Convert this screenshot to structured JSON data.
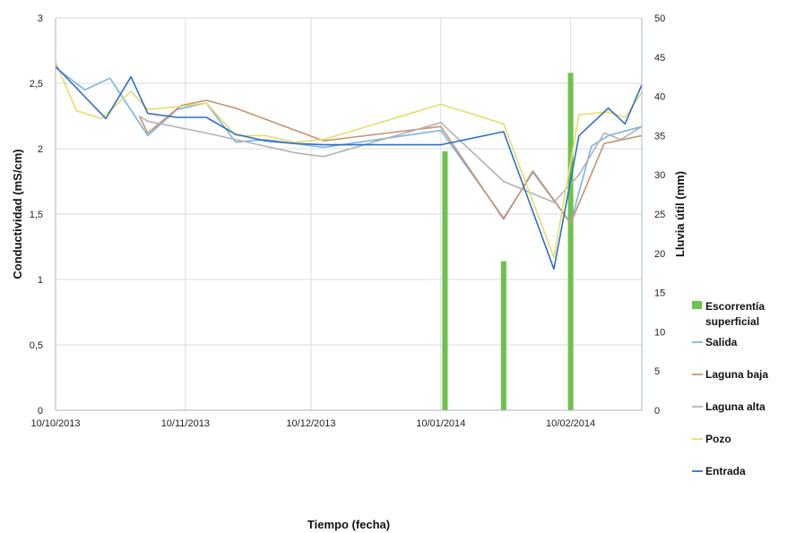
{
  "chart_data": {
    "type": "line",
    "title": "",
    "xlabel": "Tiempo (fecha)",
    "ylabel": "Conductividad (mS/cm)",
    "y2label": "Lluvia útil (mm)",
    "x_ticks": [
      "10/10/2013",
      "10/11/2013",
      "10/12/2013",
      "10/01/2014",
      "10/02/2014"
    ],
    "y_ticks": [
      "0",
      "0,5",
      "1",
      "1,5",
      "2",
      "2,5",
      "3"
    ],
    "y2_ticks": [
      "0",
      "5",
      "10",
      "15",
      "20",
      "25",
      "30",
      "35",
      "40",
      "45",
      "50"
    ],
    "ylim": [
      0,
      3
    ],
    "y2lim": [
      0,
      50
    ],
    "xlim": [
      "2013-10-10",
      "2014-02-27"
    ],
    "grid": true,
    "legend_position": "right",
    "bars": {
      "name": "Escorrentía superficial",
      "color": "#6cc24a",
      "axis": "right",
      "points": [
        {
          "x": "2014-01-11",
          "y": 33
        },
        {
          "x": "2014-01-25",
          "y": 19
        },
        {
          "x": "2014-02-10",
          "y": 43
        }
      ]
    },
    "series": [
      {
        "name": "Salida",
        "color": "#7ab4e2",
        "points": [
          {
            "x": "2013-10-10",
            "y": 2.62
          },
          {
            "x": "2013-10-17",
            "y": 2.45
          },
          {
            "x": "2013-10-23",
            "y": 2.54
          },
          {
            "x": "2013-11-01",
            "y": 2.1
          },
          {
            "x": "2013-11-08",
            "y": 2.3
          },
          {
            "x": "2013-11-15",
            "y": 2.35
          },
          {
            "x": "2013-11-22",
            "y": 2.05
          },
          {
            "x": "2013-11-29",
            "y": 2.07
          },
          {
            "x": "2013-12-06",
            "y": 2.04
          },
          {
            "x": "2013-12-13",
            "y": 2.01
          },
          {
            "x": "2014-01-10",
            "y": 2.14
          },
          {
            "x": "2014-01-25",
            "y": 1.47
          },
          {
            "x": "2014-02-01",
            "y": 1.82
          },
          {
            "x": "2014-02-10",
            "y": 1.43
          },
          {
            "x": "2014-02-15",
            "y": 2.02
          },
          {
            "x": "2014-02-19",
            "y": 2.1
          },
          {
            "x": "2014-02-27",
            "y": 2.17
          }
        ]
      },
      {
        "name": "Laguna baja",
        "color": "#c8926e",
        "points": [
          {
            "x": "2013-10-30",
            "y": 2.25
          },
          {
            "x": "2013-11-01",
            "y": 2.12
          },
          {
            "x": "2013-11-09",
            "y": 2.33
          },
          {
            "x": "2013-11-15",
            "y": 2.37
          },
          {
            "x": "2013-11-22",
            "y": 2.31
          },
          {
            "x": "2013-12-13",
            "y": 2.06
          },
          {
            "x": "2014-01-10",
            "y": 2.17
          },
          {
            "x": "2014-01-25",
            "y": 1.46
          },
          {
            "x": "2014-02-01",
            "y": 1.83
          },
          {
            "x": "2014-02-10",
            "y": 1.43
          },
          {
            "x": "2014-02-18",
            "y": 2.04
          },
          {
            "x": "2014-02-27",
            "y": 2.1
          }
        ]
      },
      {
        "name": "Laguna alta",
        "color": "#b3b3b3",
        "points": [
          {
            "x": "2013-10-30",
            "y": 2.25
          },
          {
            "x": "2013-11-01",
            "y": 2.21
          },
          {
            "x": "2013-11-15",
            "y": 2.12
          },
          {
            "x": "2013-12-06",
            "y": 1.97
          },
          {
            "x": "2013-12-13",
            "y": 1.94
          },
          {
            "x": "2014-01-10",
            "y": 2.2
          },
          {
            "x": "2014-01-25",
            "y": 1.75
          },
          {
            "x": "2014-02-06",
            "y": 1.59
          },
          {
            "x": "2014-02-12",
            "y": 1.8
          },
          {
            "x": "2014-02-18",
            "y": 2.12
          },
          {
            "x": "2014-02-22",
            "y": 2.07
          },
          {
            "x": "2014-02-27",
            "y": 2.17
          }
        ]
      },
      {
        "name": "Pozo",
        "color": "#e8dc6a",
        "points": [
          {
            "x": "2013-10-10",
            "y": 2.66
          },
          {
            "x": "2013-10-15",
            "y": 2.29
          },
          {
            "x": "2013-10-21",
            "y": 2.23
          },
          {
            "x": "2013-10-28",
            "y": 2.44
          },
          {
            "x": "2013-11-01",
            "y": 2.3
          },
          {
            "x": "2013-11-08",
            "y": 2.32
          },
          {
            "x": "2013-11-15",
            "y": 2.35
          },
          {
            "x": "2013-11-22",
            "y": 2.1
          },
          {
            "x": "2013-11-29",
            "y": 2.1
          },
          {
            "x": "2013-12-06",
            "y": 2.05
          },
          {
            "x": "2013-12-13",
            "y": 2.07
          },
          {
            "x": "2014-01-10",
            "y": 2.34
          },
          {
            "x": "2014-01-25",
            "y": 2.19
          },
          {
            "x": "2014-02-06",
            "y": 1.17
          },
          {
            "x": "2014-02-12",
            "y": 2.26
          },
          {
            "x": "2014-02-19",
            "y": 2.28
          },
          {
            "x": "2014-02-23",
            "y": 2.24
          },
          {
            "x": "2014-02-27",
            "y": 2.43
          }
        ]
      },
      {
        "name": "Entrada",
        "color": "#2f6fc4",
        "points": [
          {
            "x": "2013-10-10",
            "y": 2.63
          },
          {
            "x": "2013-10-22",
            "y": 2.23
          },
          {
            "x": "2013-10-28",
            "y": 2.55
          },
          {
            "x": "2013-11-01",
            "y": 2.27
          },
          {
            "x": "2013-11-08",
            "y": 2.24
          },
          {
            "x": "2013-11-15",
            "y": 2.24
          },
          {
            "x": "2013-11-22",
            "y": 2.11
          },
          {
            "x": "2013-11-29",
            "y": 2.06
          },
          {
            "x": "2013-12-06",
            "y": 2.04
          },
          {
            "x": "2013-12-13",
            "y": 2.03
          },
          {
            "x": "2014-01-10",
            "y": 2.03
          },
          {
            "x": "2014-01-25",
            "y": 2.13
          },
          {
            "x": "2014-02-06",
            "y": 1.08
          },
          {
            "x": "2014-02-12",
            "y": 2.1
          },
          {
            "x": "2014-02-19",
            "y": 2.31
          },
          {
            "x": "2014-02-23",
            "y": 2.19
          },
          {
            "x": "2014-02-27",
            "y": 2.49
          }
        ]
      }
    ],
    "legend": [
      {
        "name": "Escorrentía superficial",
        "lines": [
          "Escorrentía",
          "superficial"
        ],
        "kind": "bar",
        "color": "#6cc24a"
      },
      {
        "name": "Salida",
        "lines": [
          "Salida"
        ],
        "kind": "line",
        "color": "#7ab4e2"
      },
      {
        "name": "Laguna baja",
        "lines": [
          "Laguna baja"
        ],
        "kind": "line",
        "color": "#c8926e"
      },
      {
        "name": "Laguna alta",
        "lines": [
          "Laguna alta"
        ],
        "kind": "line",
        "color": "#b3b3b3"
      },
      {
        "name": "Pozo",
        "lines": [
          "Pozo"
        ],
        "kind": "line",
        "color": "#e8dc6a"
      },
      {
        "name": "Entrada",
        "lines": [
          "Entrada"
        ],
        "kind": "line",
        "color": "#2f6fc4"
      }
    ]
  }
}
